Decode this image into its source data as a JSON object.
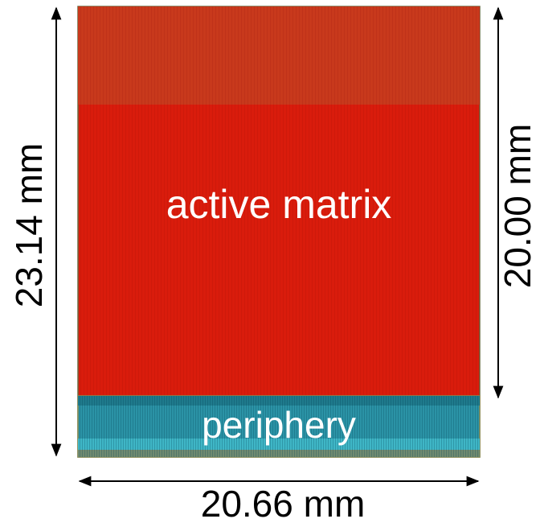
{
  "chip": {
    "regions": {
      "active": "active matrix",
      "periphery": "periphery"
    }
  },
  "dimensions": {
    "height": "23.14 mm",
    "active_height": "20.00 mm",
    "width": "20.66 mm"
  }
}
